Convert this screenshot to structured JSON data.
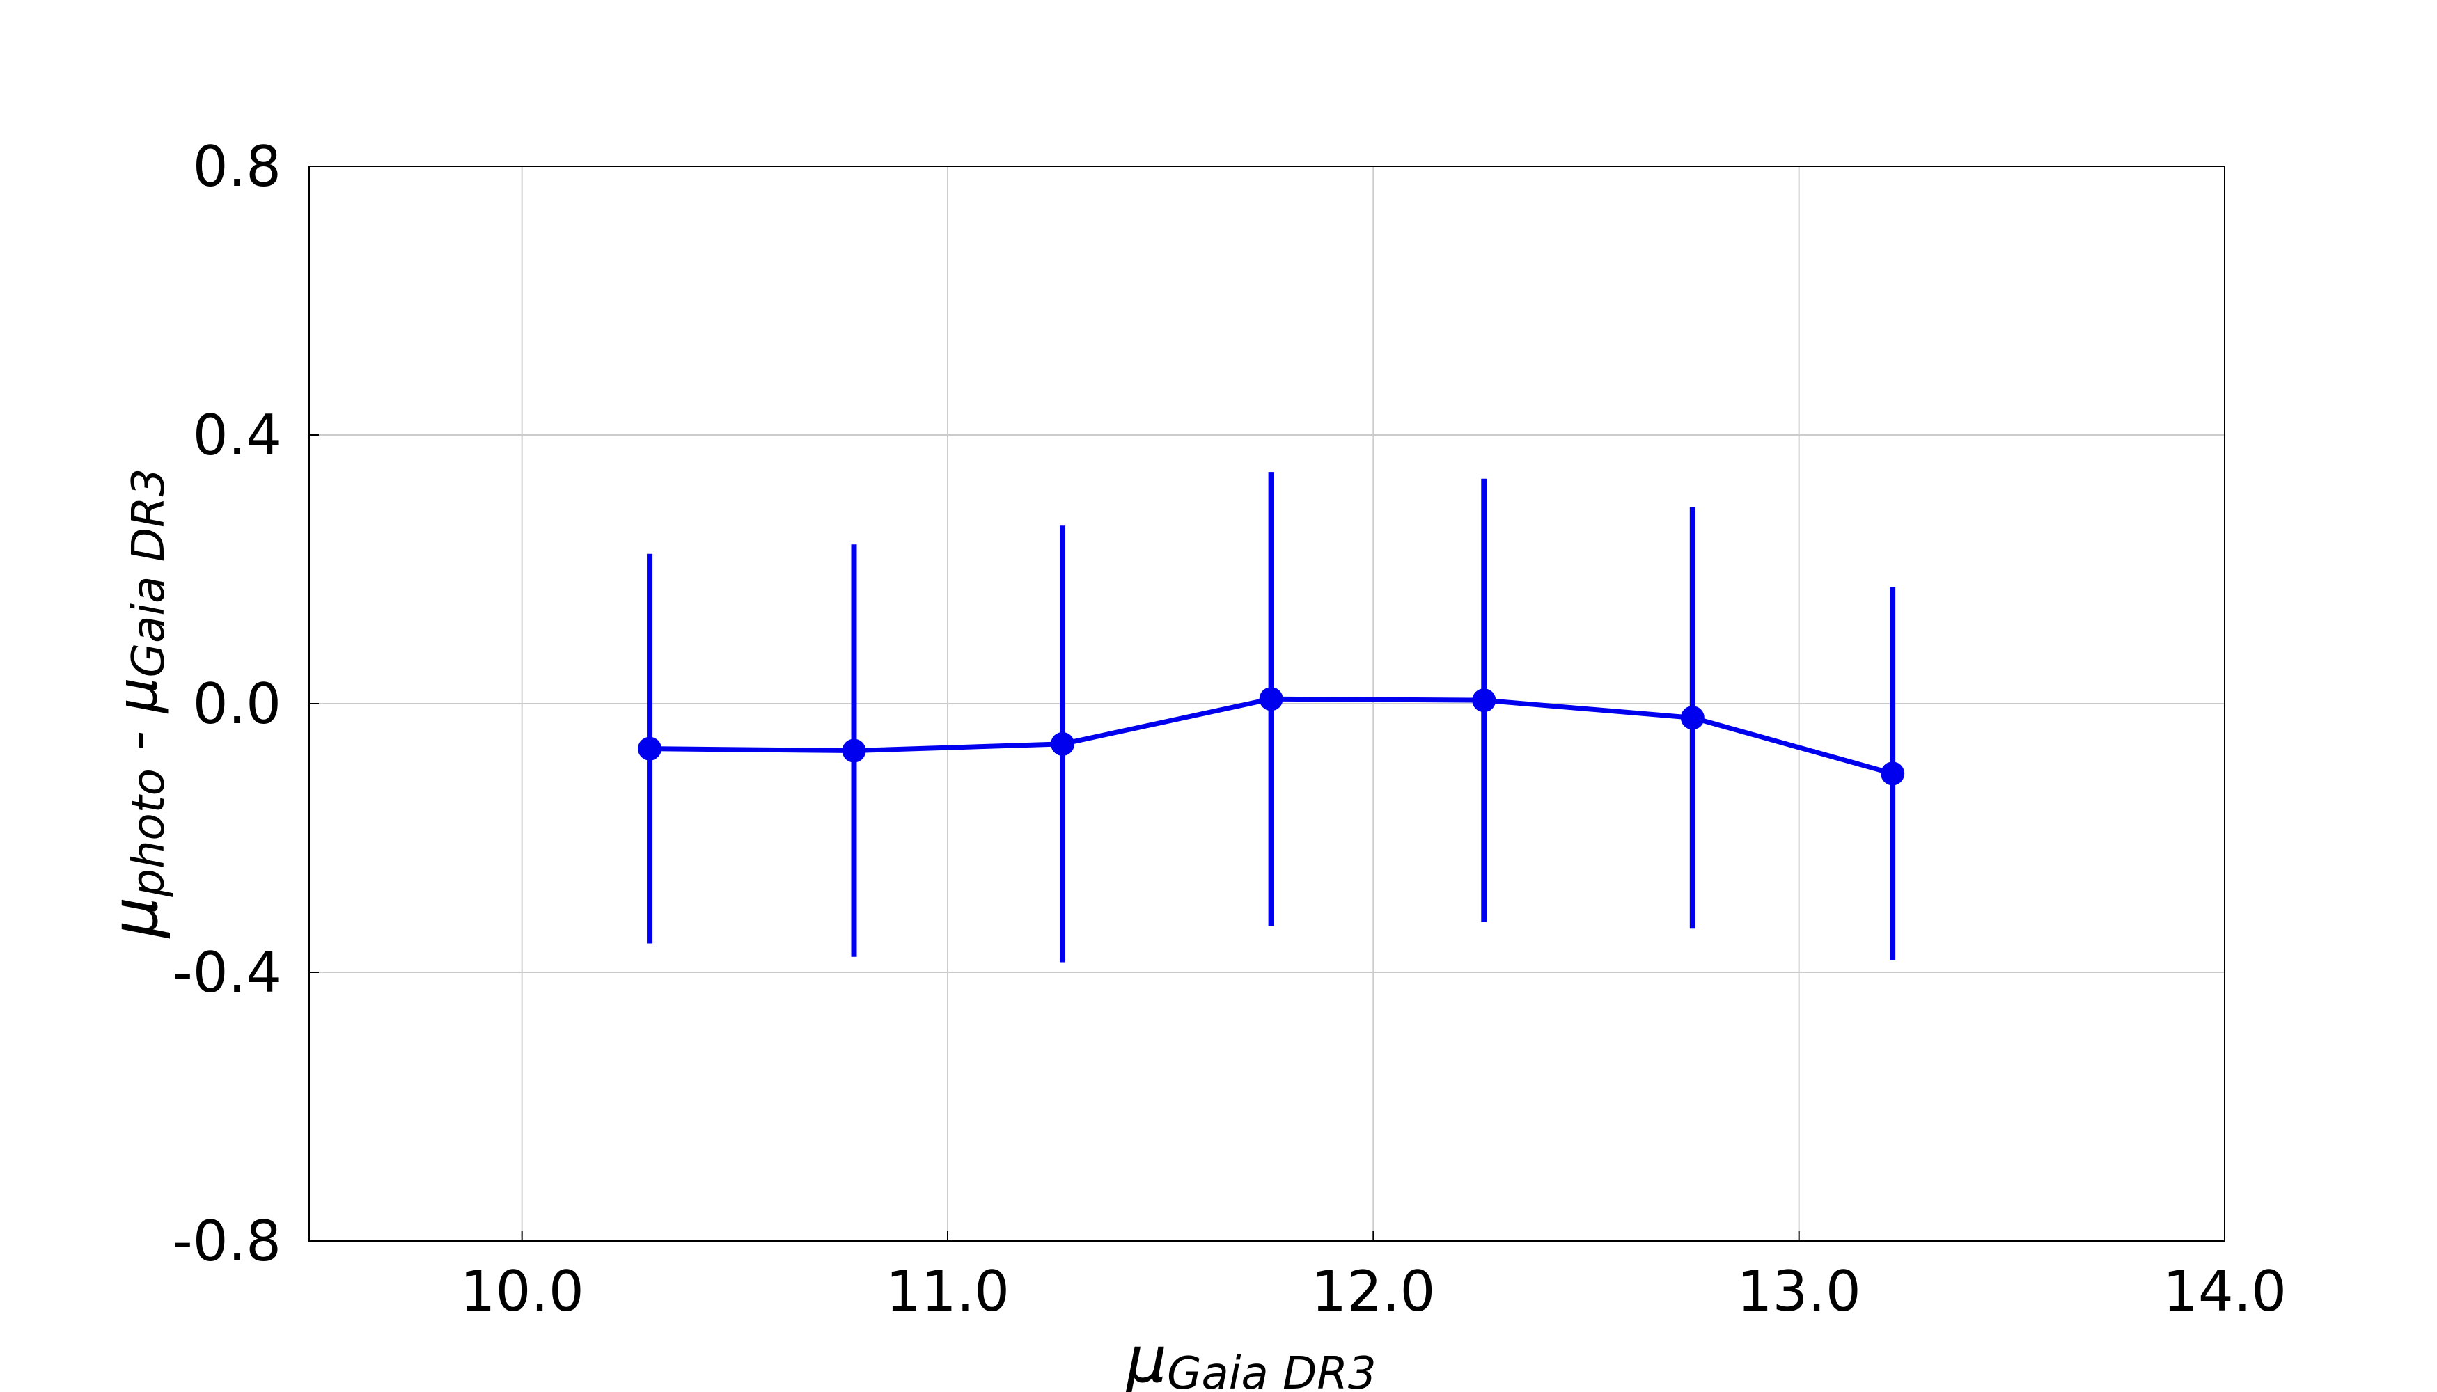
{
  "chart_data": {
    "type": "errorbar",
    "xlabel_parts": [
      "μ",
      "Gaia DR3"
    ],
    "ylabel_parts": [
      "μ",
      "photo",
      " - μ",
      "Gaia DR3"
    ],
    "x": [
      10.3,
      10.78,
      11.27,
      11.76,
      12.26,
      12.75,
      13.22
    ],
    "series": [
      {
        "color": "#0000ee",
        "values": [
          -0.067,
          -0.07,
          -0.06,
          0.007,
          0.005,
          -0.021,
          -0.104
        ],
        "yerr": [
          0.29,
          0.307,
          0.325,
          0.338,
          0.33,
          0.314,
          0.278
        ]
      }
    ],
    "xlim": [
      9.5,
      14.0
    ],
    "xticks": [
      {
        "value": 10,
        "label": "10.0"
      },
      {
        "value": 11,
        "label": "11.0"
      },
      {
        "value": 12,
        "label": "12.0"
      },
      {
        "value": 13,
        "label": "13.0"
      },
      {
        "value": 14,
        "label": "14.0"
      }
    ],
    "ylim": [
      -0.8,
      0.8
    ],
    "yticks": [
      -0.8,
      -0.4,
      {
        "value": 0,
        "label": "0.0"
      },
      0.4,
      0.8
    ],
    "grid": true
  }
}
